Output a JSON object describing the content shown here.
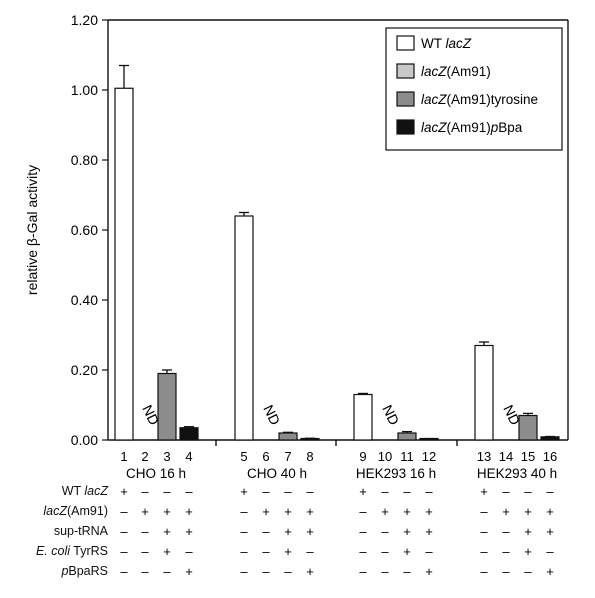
{
  "chart_data": {
    "type": "bar",
    "ylabel": "relative β-Gal activity",
    "ylim": [
      0,
      1.2
    ],
    "yticks": [
      "0.00",
      "0.20",
      "0.40",
      "0.60",
      "0.80",
      "1.00",
      "1.20"
    ],
    "lane_numbers": [
      "1",
      "2",
      "3",
      "4",
      "5",
      "6",
      "7",
      "8",
      "9",
      "10",
      "11",
      "12",
      "13",
      "14",
      "15",
      "16"
    ],
    "group_labels": [
      "CHO 16 h",
      "CHO 40 h",
      "HEK293 16 h",
      "HEK293 40 h"
    ],
    "not_determined_label": "ND",
    "legend": [
      {
        "label_plain": "WT ",
        "label_italic": "lacZ",
        "label_after": "",
        "color": "#ffffff"
      },
      {
        "label_plain": "",
        "label_italic": "lacZ",
        "label_after": "(Am91)",
        "color": "#c8c8c8"
      },
      {
        "label_plain": "",
        "label_italic": "lacZ",
        "label_after": "(Am91)tyrosine",
        "color": "#8c8c8c"
      },
      {
        "label_plain": "",
        "label_italic": "lacZ",
        "label_after": "(Am91)",
        "label_italic2": "p",
        "label_after2": "Bpa",
        "color": "#111111"
      }
    ],
    "series": [
      {
        "values": [
          1.005,
          0.64,
          0.13,
          0.27
        ],
        "errors": [
          0.065,
          0.01,
          0.003,
          0.01
        ]
      },
      {
        "values": [
          null,
          null,
          null,
          null
        ],
        "errors": [
          0,
          0,
          0,
          0
        ]
      },
      {
        "values": [
          0.19,
          0.02,
          0.02,
          0.07
        ],
        "errors": [
          0.01,
          0.002,
          0.004,
          0.006
        ]
      },
      {
        "values": [
          0.035,
          0.004,
          0.003,
          0.009
        ],
        "errors": [
          0.003,
          0.001,
          0.001,
          0.001
        ]
      }
    ]
  },
  "conditions": {
    "rows": [
      {
        "plain": "WT ",
        "italic": "lacZ",
        "after": "",
        "signs": [
          "+",
          "–",
          "–",
          "–",
          "+",
          "–",
          "–",
          "–",
          "+",
          "–",
          "–",
          "–",
          "+",
          "–",
          "–",
          "–"
        ]
      },
      {
        "plain": "",
        "italic": "lacZ",
        "after": "(Am91)",
        "signs": [
          "–",
          "+",
          "+",
          "+",
          "–",
          "+",
          "+",
          "+",
          "–",
          "+",
          "+",
          "+",
          "–",
          "+",
          "+",
          "+"
        ]
      },
      {
        "plain": "sup-tRNA",
        "italic": "",
        "after": "",
        "signs": [
          "–",
          "–",
          "+",
          "+",
          "–",
          "–",
          "+",
          "+",
          "–",
          "–",
          "+",
          "+",
          "–",
          "–",
          "+",
          "+"
        ]
      },
      {
        "plain": "",
        "italic": "E. coli",
        "after": " TyrRS",
        "signs": [
          "–",
          "–",
          "+",
          "–",
          "–",
          "–",
          "+",
          "–",
          "–",
          "–",
          "+",
          "–",
          "–",
          "–",
          "+",
          "–"
        ]
      },
      {
        "plain": "",
        "italic": "p",
        "after": "BpaRS",
        "signs": [
          "–",
          "–",
          "–",
          "+",
          "–",
          "–",
          "–",
          "+",
          "–",
          "–",
          "–",
          "+",
          "–",
          "–",
          "–",
          "+"
        ]
      }
    ]
  }
}
